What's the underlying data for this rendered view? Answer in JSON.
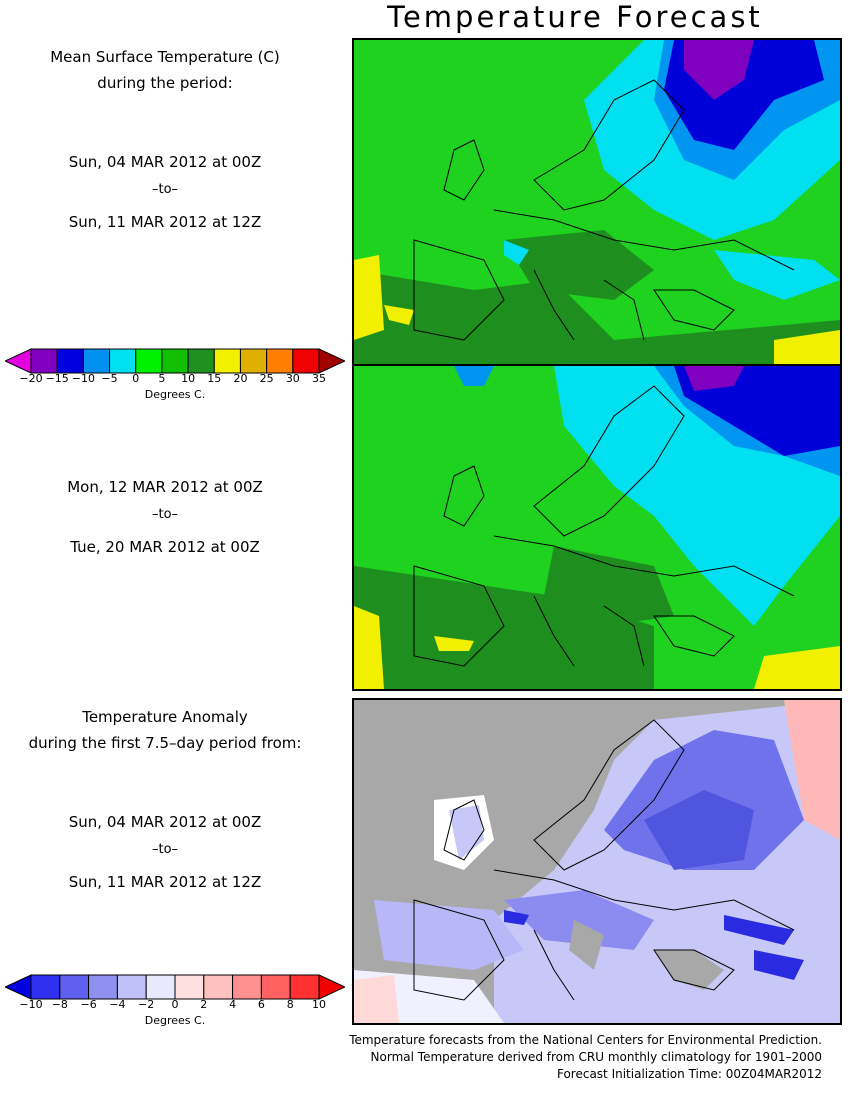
{
  "title": "Temperature Forecast",
  "panel1": {
    "header_line1": "Mean Surface Temperature (C)",
    "header_line2": "during the period:",
    "start": "Sun, 04 MAR 2012 at 00Z",
    "to": "–to–",
    "end": "Sun, 11 MAR 2012 at 12Z"
  },
  "panel2": {
    "start": "Mon, 12 MAR 2012 at 00Z",
    "to": "–to–",
    "end": "Tue, 20 MAR 2012 at 00Z"
  },
  "panel3": {
    "header_line1": "Temperature Anomaly",
    "header_line2": "during the first 7.5–day period from:",
    "start": "Sun, 04 MAR 2012 at 00Z",
    "to": "–to–",
    "end": "Sun, 11 MAR 2012 at 12Z"
  },
  "temp_scale": {
    "ticks": [
      "−20",
      "−15",
      "−10",
      "−5",
      "0",
      "5",
      "10",
      "15",
      "20",
      "25",
      "30",
      "35"
    ],
    "colors": [
      "#e000e0",
      "#8000c0",
      "#0000e0",
      "#0090f0",
      "#00e0f0",
      "#00f000",
      "#10c000",
      "#209020",
      "#f0f000",
      "#e0b000",
      "#ff8000",
      "#f00000",
      "#a00000"
    ],
    "unit": "Degrees C."
  },
  "anom_scale": {
    "ticks": [
      "−10",
      "−8",
      "−6",
      "−4",
      "−2",
      "0",
      "2",
      "4",
      "6",
      "8",
      "10"
    ],
    "colors": [
      "#0000e0",
      "#3030f0",
      "#6060f0",
      "#9090f0",
      "#c0c0f8",
      "#e8e8ff",
      "#ffe0e0",
      "#ffc0c0",
      "#ff9090",
      "#ff6060",
      "#ff3030",
      "#f00000"
    ],
    "unit": "Degrees C."
  },
  "credits": {
    "line1": "Temperature forecasts from the National Centers for Environmental Prediction.",
    "line2": "Normal Temperature derived from CRU monthly climatology for 1901–2000",
    "line3": "Forecast Initialization Time: 00Z04MAR2012"
  }
}
